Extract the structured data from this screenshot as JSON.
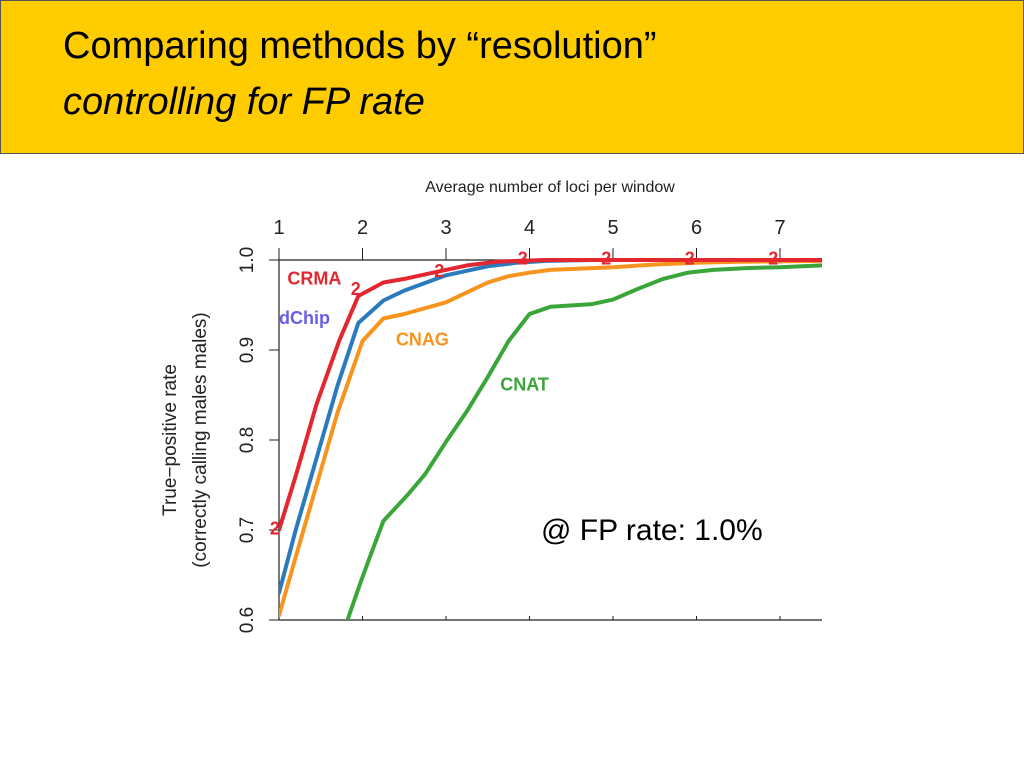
{
  "slide": {
    "title_line1": "Comparing methods by “resolution”",
    "title_line2": "controlling for FP rate",
    "annotation": "@ FP rate: 1.0%"
  },
  "chart_data": {
    "type": "line",
    "top_axis_label": "Average number of loci per window",
    "ylabel_line1": "True−positive rate",
    "ylabel_line2": "(correctly calling males males)",
    "x_ticks": [
      1,
      2,
      3,
      4,
      5,
      6,
      7
    ],
    "y_ticks": [
      "0.6",
      "0.7",
      "0.8",
      "0.9",
      "1.0"
    ],
    "xlim": [
      1,
      7.5
    ],
    "ylim": [
      0.6,
      1.0
    ],
    "grid": false,
    "series": [
      {
        "name": "CNAT",
        "color": "#3aa63a",
        "x": [
          1.82,
          1.97,
          2.08,
          2.25,
          2.55,
          2.75,
          3.0,
          3.25,
          3.5,
          3.75,
          4.0,
          4.25,
          4.75,
          5.0,
          5.3,
          5.6,
          5.9,
          6.2,
          6.6,
          7.0,
          7.5
        ],
        "y": [
          0.6,
          0.64,
          0.668,
          0.71,
          0.74,
          0.762,
          0.798,
          0.832,
          0.87,
          0.91,
          0.94,
          0.948,
          0.951,
          0.956,
          0.968,
          0.979,
          0.986,
          0.989,
          0.991,
          0.992,
          0.994
        ]
      },
      {
        "name": "CNAG",
        "color": "#f7941d",
        "x": [
          1.0,
          1.2,
          1.45,
          1.7,
          2.0,
          2.25,
          2.5,
          3.0,
          3.5,
          3.75,
          4.0,
          4.25,
          4.75,
          5.0,
          5.5,
          6.0,
          6.5,
          7.5
        ],
        "y": [
          0.605,
          0.67,
          0.75,
          0.83,
          0.91,
          0.935,
          0.94,
          0.953,
          0.975,
          0.982,
          0.986,
          0.989,
          0.991,
          0.992,
          0.995,
          0.997,
          0.998,
          0.999
        ]
      },
      {
        "name": "dChip",
        "color": "#2a7bbd",
        "x": [
          1.0,
          1.2,
          1.45,
          1.7,
          1.95,
          2.25,
          2.5,
          3.0,
          3.5,
          3.85,
          4.2,
          4.75,
          5.5,
          7.5
        ],
        "y": [
          0.63,
          0.7,
          0.78,
          0.86,
          0.93,
          0.955,
          0.966,
          0.983,
          0.993,
          0.997,
          0.999,
          1.0,
          1.0,
          1.0
        ]
      },
      {
        "name": "CRMA",
        "color": "#e3262f",
        "x": [
          1.0,
          1.2,
          1.45,
          1.72,
          1.95,
          2.25,
          2.5,
          2.9,
          3.25,
          3.6,
          3.85,
          4.2,
          5.0,
          7.5
        ],
        "y": [
          0.7,
          0.76,
          0.84,
          0.91,
          0.96,
          0.975,
          0.979,
          0.987,
          0.994,
          0.998,
          0.999,
          1.0,
          1.0,
          1.0
        ]
      }
    ],
    "series_labels": [
      {
        "text": "CRMA",
        "color": "#e3262f",
        "x": 1.1,
        "y": 0.973
      },
      {
        "text": "dChip",
        "color": "#6a5de8",
        "x": 1.0,
        "y": 0.929
      },
      {
        "text": "CNAG",
        "color": "#f7941d",
        "x": 2.4,
        "y": 0.905
      },
      {
        "text": "CNAT",
        "color": "#3aa63a",
        "x": 3.65,
        "y": 0.855
      }
    ],
    "markers": {
      "text": "2",
      "color": "#e3262f",
      "points": [
        [
          0.95,
          0.704
        ],
        [
          1.92,
          0.97
        ],
        [
          2.92,
          0.99
        ],
        [
          3.92,
          1.004
        ],
        [
          4.92,
          1.004
        ],
        [
          5.92,
          1.004
        ],
        [
          6.92,
          1.004
        ]
      ]
    }
  }
}
